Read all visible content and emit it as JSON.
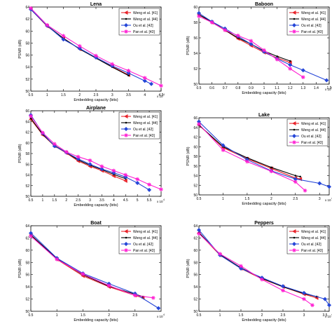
{
  "figure": {
    "x_label": "Embedding capacity (bits)",
    "y_label": "PSNR (dB)"
  },
  "chart_data": [
    {
      "type": "line",
      "title": "Lena",
      "xlabel": "Embedding capacity (bits)",
      "ylabel": "PSNR (dB)",
      "xlim": [
        0.5,
        4.5
      ],
      "ylim": [
        50,
        64
      ],
      "x_ticks": [
        "0.5",
        "1",
        "1.5",
        "2",
        "2.5",
        "3",
        "3.5",
        "4",
        "4.5"
      ],
      "y_ticks": [
        "50",
        "52",
        "54",
        "56",
        "58",
        "60",
        "62",
        "64"
      ],
      "x_exponent": "x 10^4",
      "legend_position": "top-right",
      "series": [
        {
          "name": "Weng et al. [41]",
          "color": "#e8232a",
          "marker": "triangle-left",
          "x": [
            0.5,
            1.0,
            1.5,
            2.0,
            2.5,
            3.0,
            3.5
          ],
          "y": [
            63.6,
            60.8,
            58.8,
            57.0,
            55.6,
            54.1,
            52.7
          ]
        },
        {
          "name": "Weng et al. [44]",
          "color": "#000000",
          "marker": "dot",
          "x": [
            0.5,
            1.0,
            1.5,
            2.0,
            2.5,
            3.0,
            3.5
          ],
          "y": [
            63.6,
            60.9,
            58.8,
            57.0,
            55.5,
            54.0,
            52.6
          ]
        },
        {
          "name": "Ou et al. [42]",
          "color": "#2546d8",
          "marker": "diamond",
          "x": [
            0.5,
            1.0,
            1.5,
            2.0,
            2.5,
            3.0,
            3.5,
            4.0,
            4.2
          ],
          "y": [
            63.6,
            60.9,
            58.6,
            57.1,
            55.6,
            54.2,
            53.0,
            51.7,
            51.2
          ]
        },
        {
          "name": "Pan et al. [43]",
          "color": "#ff1ed2",
          "marker": "asterisk",
          "x": [
            0.5,
            1.0,
            1.5,
            2.0,
            2.5,
            3.0,
            3.5,
            4.0,
            4.5
          ],
          "y": [
            63.8,
            61.0,
            59.2,
            57.5,
            55.9,
            54.5,
            53.4,
            52.2,
            50.9
          ]
        }
      ]
    },
    {
      "type": "line",
      "title": "Baboon",
      "xlabel": "Embedding capacity (bits)",
      "ylabel": "PSNR (dB)",
      "xlim": [
        0.5,
        1.5
      ],
      "ylim": [
        50,
        60
      ],
      "x_ticks": [
        "0.5",
        "0.6",
        "0.7",
        "0.8",
        "0.9",
        "1",
        "1.1",
        "1.2",
        "1.3",
        "1.4",
        "1.5"
      ],
      "y_ticks": [
        "50",
        "52",
        "54",
        "56",
        "58",
        "60"
      ],
      "x_exponent": "x 10^4",
      "legend_position": "top-right",
      "series": [
        {
          "name": "Weng et al. [41]",
          "color": "#e8232a",
          "marker": "triangle-left",
          "x": [
            0.5,
            0.6,
            0.7,
            0.8,
            0.9,
            1.0,
            1.1,
            1.2
          ],
          "y": [
            59.0,
            58.0,
            57.0,
            55.9,
            55.0,
            54.1,
            53.4,
            52.8
          ]
        },
        {
          "name": "Weng et al. [44]",
          "color": "#000000",
          "marker": "dot",
          "x": [
            0.5,
            0.6,
            0.7,
            0.8,
            0.9,
            1.0,
            1.1,
            1.2
          ],
          "y": [
            59.0,
            58.1,
            57.0,
            56.0,
            55.2,
            54.3,
            53.6,
            53.0
          ]
        },
        {
          "name": "Ou et al. [42]",
          "color": "#2546d8",
          "marker": "diamond",
          "x": [
            0.5,
            0.6,
            0.7,
            0.8,
            0.9,
            1.0,
            1.1,
            1.2,
            1.3,
            1.48
          ],
          "y": [
            59.2,
            58.1,
            57.2,
            56.2,
            55.2,
            54.2,
            53.3,
            52.5,
            51.8,
            50.5
          ]
        },
        {
          "name": "Pan et al. [43]",
          "color": "#ff1ed2",
          "marker": "asterisk",
          "x": [
            0.5,
            0.6,
            0.7,
            0.8,
            0.9,
            1.0,
            1.1,
            1.2,
            1.3
          ],
          "y": [
            58.8,
            58.0,
            57.0,
            56.3,
            55.6,
            54.4,
            53.2,
            52.0,
            50.9
          ]
        }
      ]
    },
    {
      "type": "line",
      "title": "Airplane",
      "xlabel": "Embedding capacity (bits)",
      "ylabel": "PSNR (dB)",
      "xlim": [
        0.5,
        6
      ],
      "ylim": [
        50,
        66
      ],
      "x_ticks": [
        "0.5",
        "1",
        "1.5",
        "2",
        "2.5",
        "3",
        "3.5",
        "4",
        "4.5",
        "5",
        "5.5"
      ],
      "y_ticks": [
        "50",
        "52",
        "54",
        "56",
        "58",
        "60",
        "62",
        "64",
        "66"
      ],
      "x_exponent": "x 10^4",
      "legend_position": "top-right",
      "series": [
        {
          "name": "Weng et al. [41]",
          "color": "#e8232a",
          "marker": "triangle-left",
          "x": [
            0.5,
            1.0,
            1.5,
            2.0,
            2.5,
            3.0,
            3.5,
            4.0,
            4.5
          ],
          "y": [
            64.4,
            61.5,
            59.4,
            58.1,
            56.6,
            55.6,
            54.8,
            53.8,
            52.9
          ]
        },
        {
          "name": "Weng et al. [44]",
          "color": "#000000",
          "marker": "dot",
          "x": [
            0.5,
            1.0,
            1.5,
            2.0,
            2.5,
            3.0,
            3.5,
            4.0,
            4.5
          ],
          "y": [
            64.6,
            61.6,
            59.5,
            58.2,
            56.8,
            55.8,
            55.0,
            54.1,
            53.3
          ]
        },
        {
          "name": "Ou et al. [42]",
          "color": "#2546d8",
          "marker": "diamond",
          "x": [
            0.5,
            1.0,
            1.5,
            2.0,
            2.5,
            3.0,
            3.5,
            4.0,
            4.5,
            5.0,
            5.5
          ],
          "y": [
            65.2,
            61.8,
            59.4,
            58.2,
            57.0,
            56.0,
            55.1,
            54.4,
            53.6,
            52.5,
            51.2
          ]
        },
        {
          "name": "Pan et al. [43]",
          "color": "#ff1ed2",
          "marker": "asterisk",
          "x": [
            0.5,
            1.0,
            1.5,
            2.0,
            2.5,
            3.0,
            3.5,
            4.0,
            4.5,
            5.0,
            5.5,
            6.0
          ],
          "y": [
            65.0,
            61.9,
            59.8,
            58.3,
            57.4,
            56.7,
            55.6,
            54.8,
            54.0,
            53.2,
            52.2,
            51.3
          ]
        }
      ]
    },
    {
      "type": "line",
      "title": "Lake",
      "xlabel": "Embedding capacity (bits)",
      "ylabel": "PSNR (dB)",
      "xlim": [
        0.5,
        3.2
      ],
      "ylim": [
        50,
        66
      ],
      "x_ticks": [
        "0.5",
        "1",
        "1.5",
        "2",
        "2.5",
        "3"
      ],
      "y_ticks": [
        "50",
        "52",
        "54",
        "56",
        "58",
        "60",
        "62",
        "64",
        "66"
      ],
      "x_exponent": "x 10^4",
      "legend_position": "top-right",
      "series": [
        {
          "name": "Weng et al. [41]",
          "color": "#e8232a",
          "marker": "triangle-left",
          "x": [
            0.5,
            1.0,
            1.5,
            2.0,
            2.5,
            2.6
          ],
          "y": [
            64.5,
            59.8,
            57.5,
            55.5,
            53.5,
            53.3
          ]
        },
        {
          "name": "Weng et al. [44]",
          "color": "#000000",
          "marker": "dot",
          "x": [
            0.5,
            1.0,
            1.5,
            2.0,
            2.5,
            2.6
          ],
          "y": [
            64.5,
            60.0,
            57.7,
            55.7,
            54.0,
            53.8
          ]
        },
        {
          "name": "Ou et al. [42]",
          "color": "#2546d8",
          "marker": "diamond",
          "x": [
            0.5,
            1.0,
            1.5,
            2.0,
            2.5,
            3.0,
            3.2
          ],
          "y": [
            65.2,
            60.3,
            57.3,
            55.0,
            53.3,
            52.4,
            51.7
          ]
        },
        {
          "name": "Pan et al. [43]",
          "color": "#ff1ed2",
          "marker": "asterisk",
          "x": [
            0.5,
            1.0,
            1.5,
            2.0,
            2.5,
            2.7
          ],
          "y": [
            64.7,
            59.3,
            56.9,
            54.9,
            52.7,
            50.9
          ]
        }
      ]
    },
    {
      "type": "line",
      "title": "Boat",
      "xlabel": "Embedding capacity (bits)",
      "ylabel": "PSNR (dB)",
      "xlim": [
        0.5,
        3
      ],
      "ylim": [
        50,
        64
      ],
      "x_ticks": [
        "0.5",
        "1",
        "1.5",
        "2",
        "2.5"
      ],
      "y_ticks": [
        "50",
        "52",
        "54",
        "56",
        "58",
        "60",
        "62",
        "64"
      ],
      "x_exponent": "x 10^4",
      "legend_position": "top-right",
      "series": [
        {
          "name": "Weng et al. [41]",
          "color": "#e8232a",
          "marker": "triangle-left",
          "x": [
            0.5,
            1.0,
            1.5,
            2.0,
            2.5,
            2.65
          ],
          "y": [
            62.5,
            58.5,
            55.8,
            54.0,
            52.6,
            52.2
          ]
        },
        {
          "name": "Weng et al. [44]",
          "color": "#000000",
          "marker": "dot",
          "x": [
            0.5,
            1.0,
            1.5,
            2.0,
            2.5,
            2.65
          ],
          "y": [
            62.5,
            58.6,
            56.0,
            54.1,
            52.8,
            52.4
          ]
        },
        {
          "name": "Ou et al. [42]",
          "color": "#2546d8",
          "marker": "diamond",
          "x": [
            0.5,
            1.0,
            1.5,
            2.0,
            2.5,
            2.95
          ],
          "y": [
            62.8,
            58.7,
            56.2,
            54.5,
            52.9,
            50.5
          ]
        },
        {
          "name": "Pan et al. [43]",
          "color": "#ff1ed2",
          "marker": "asterisk",
          "x": [
            0.5,
            1.0,
            1.5,
            2.0,
            2.5,
            2.85
          ],
          "y": [
            62.3,
            58.5,
            56.1,
            54.2,
            52.6,
            52.2
          ]
        }
      ]
    },
    {
      "type": "line",
      "title": "Peppers",
      "xlabel": "Embedding capacity (bits)",
      "ylabel": "PSNR (dB)",
      "xlim": [
        0.5,
        3.6
      ],
      "ylim": [
        50,
        64
      ],
      "x_ticks": [
        "0.5",
        "1",
        "1.5",
        "2",
        "2.5",
        "3",
        "3.5"
      ],
      "y_ticks": [
        "50",
        "52",
        "54",
        "56",
        "58",
        "60",
        "62",
        "64"
      ],
      "x_exponent": "x 10^4",
      "legend_position": "top-right",
      "series": [
        {
          "name": "Weng et al. [41]",
          "color": "#e8232a",
          "marker": "triangle-left",
          "x": [
            0.5,
            1.0,
            1.5,
            2.0,
            2.5,
            3.0,
            3.3
          ],
          "y": [
            62.8,
            59.2,
            57.0,
            55.3,
            54.0,
            52.8,
            52.2
          ]
        },
        {
          "name": "Weng et al. [44]",
          "color": "#000000",
          "marker": "dot",
          "x": [
            0.5,
            1.0,
            1.5,
            2.0,
            2.5,
            3.0,
            3.3
          ],
          "y": [
            62.9,
            59.3,
            57.1,
            55.4,
            54.0,
            52.9,
            52.4
          ]
        },
        {
          "name": "Ou et al. [42]",
          "color": "#2546d8",
          "marker": "diamond",
          "x": [
            0.5,
            1.0,
            1.5,
            2.0,
            2.5,
            3.0,
            3.5,
            3.6
          ],
          "y": [
            63.3,
            59.2,
            57.0,
            55.5,
            54.1,
            53.0,
            52.0,
            51.0
          ]
        },
        {
          "name": "Pan et al. [43]",
          "color": "#ff1ed2",
          "marker": "asterisk",
          "x": [
            0.5,
            1.0,
            1.5,
            2.0,
            2.5,
            3.0,
            3.2
          ],
          "y": [
            62.7,
            59.4,
            57.4,
            55.2,
            53.4,
            52.0,
            51.0
          ]
        }
      ]
    }
  ]
}
